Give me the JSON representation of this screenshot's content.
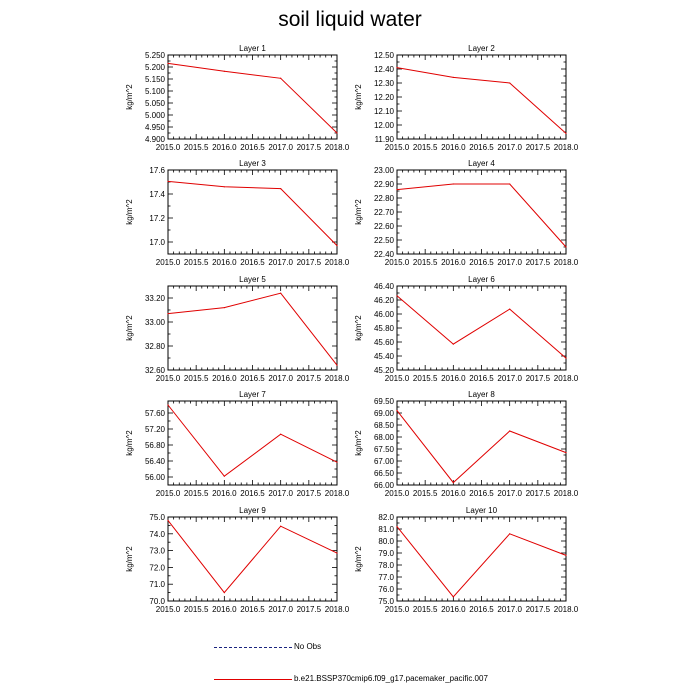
{
  "title": "soil liquid water",
  "colors": {
    "model_line": "#e00000",
    "obs_line": "#1a237e",
    "axis": "#000000"
  },
  "legend": {
    "obs_label": "No Obs",
    "model_label": "b.e21.BSSP370cmip6.f09_g17.pacemaker_pacific.007"
  },
  "chart_data": [
    {
      "type": "line",
      "title": "Layer 1",
      "ylabel": "kg/m^2",
      "x": [
        2015,
        2016,
        2017,
        2018
      ],
      "values": [
        5.215,
        5.182,
        5.153,
        4.925
      ],
      "xticks": [
        "2015.0",
        "2015.5",
        "2016.0",
        "2016.5",
        "2017.0",
        "2017.5",
        "2018.0"
      ],
      "xlim": [
        2015,
        2018
      ],
      "ylim": [
        4.9,
        5.25
      ],
      "yticks": [
        4.9,
        4.95,
        5.0,
        5.05,
        5.1,
        5.15,
        5.2,
        5.25
      ],
      "ytick_labels": [
        "4.900",
        "4.950",
        "5.000",
        "5.050",
        "5.100",
        "5.150",
        "5.200",
        "5.250"
      ]
    },
    {
      "type": "line",
      "title": "Layer 2",
      "ylabel": "kg/m^2",
      "x": [
        2015,
        2016,
        2017,
        2018
      ],
      "values": [
        12.41,
        12.34,
        12.3,
        11.94
      ],
      "xticks": [
        "2015.0",
        "2015.5",
        "2016.0",
        "2016.5",
        "2017.0",
        "2017.5",
        "2018.0"
      ],
      "xlim": [
        2015,
        2018
      ],
      "ylim": [
        11.9,
        12.5
      ],
      "yticks": [
        11.9,
        12.0,
        12.1,
        12.2,
        12.3,
        12.4,
        12.5
      ],
      "ytick_labels": [
        "11.90",
        "12.00",
        "12.10",
        "12.20",
        "12.30",
        "12.40",
        "12.50"
      ]
    },
    {
      "type": "line",
      "title": "Layer 3",
      "ylabel": "kg/m^2",
      "x": [
        2015,
        2016,
        2017,
        2018
      ],
      "values": [
        17.505,
        17.46,
        17.445,
        16.97
      ],
      "xticks": [
        "2015.0",
        "2015.5",
        "2016.0",
        "2016.5",
        "2017.0",
        "2017.5",
        "2018.0"
      ],
      "xlim": [
        2015,
        2018
      ],
      "ylim": [
        16.9,
        17.6
      ],
      "yticks": [
        17.0,
        17.2,
        17.4,
        17.6
      ],
      "ytick_labels": [
        "17.0",
        "17.2",
        "17.4",
        "17.6"
      ]
    },
    {
      "type": "line",
      "title": "Layer 4",
      "ylabel": "kg/m^2",
      "x": [
        2015,
        2016,
        2017,
        2018
      ],
      "values": [
        22.86,
        22.9,
        22.9,
        22.45
      ],
      "xticks": [
        "2015.0",
        "2015.5",
        "2016.0",
        "2016.5",
        "2017.0",
        "2017.5",
        "2018.0"
      ],
      "xlim": [
        2015,
        2018
      ],
      "ylim": [
        22.4,
        23.0
      ],
      "yticks": [
        22.4,
        22.5,
        22.6,
        22.7,
        22.8,
        22.9,
        23.0
      ],
      "ytick_labels": [
        "22.40",
        "22.50",
        "22.60",
        "22.70",
        "22.80",
        "22.90",
        "23.00"
      ]
    },
    {
      "type": "line",
      "title": "Layer 5",
      "ylabel": "kg/m^2",
      "x": [
        2015,
        2016,
        2017,
        2018
      ],
      "values": [
        33.07,
        33.12,
        33.24,
        32.64
      ],
      "xticks": [
        "2015.0",
        "2015.5",
        "2016.0",
        "2016.5",
        "2017.0",
        "2017.5",
        "2018.0"
      ],
      "xlim": [
        2015,
        2018
      ],
      "ylim": [
        32.6,
        33.3
      ],
      "yticks": [
        32.6,
        32.8,
        33.0,
        33.2
      ],
      "ytick_labels": [
        "32.60",
        "32.80",
        "33.00",
        "33.20"
      ]
    },
    {
      "type": "line",
      "title": "Layer 6",
      "ylabel": "kg/m^2",
      "x": [
        2015,
        2016,
        2017,
        2018
      ],
      "values": [
        46.26,
        45.57,
        46.07,
        45.37
      ],
      "xticks": [
        "2015.0",
        "2015.5",
        "2016.0",
        "2016.5",
        "2017.0",
        "2017.5",
        "2018.0"
      ],
      "xlim": [
        2015,
        2018
      ],
      "ylim": [
        45.2,
        46.4
      ],
      "yticks": [
        45.2,
        45.4,
        45.6,
        45.8,
        46.0,
        46.2,
        46.4
      ],
      "ytick_labels": [
        "45.20",
        "45.40",
        "45.60",
        "45.80",
        "46.00",
        "46.20",
        "46.40"
      ]
    },
    {
      "type": "line",
      "title": "Layer 7",
      "ylabel": "kg/m^2",
      "x": [
        2015,
        2016,
        2017,
        2018
      ],
      "values": [
        57.8,
        56.02,
        57.07,
        56.37
      ],
      "xticks": [
        "2015.0",
        "2015.5",
        "2016.0",
        "2016.5",
        "2017.0",
        "2017.5",
        "2018.0"
      ],
      "xlim": [
        2015,
        2018
      ],
      "ylim": [
        55.8,
        57.9
      ],
      "yticks": [
        56.0,
        56.4,
        56.8,
        57.2,
        57.6
      ],
      "ytick_labels": [
        "56.00",
        "56.40",
        "56.80",
        "57.20",
        "57.60"
      ]
    },
    {
      "type": "line",
      "title": "Layer 8",
      "ylabel": "kg/m^2",
      "x": [
        2015,
        2016,
        2017,
        2018
      ],
      "values": [
        69.1,
        66.1,
        68.25,
        67.35
      ],
      "xticks": [
        "2015.0",
        "2015.5",
        "2016.0",
        "2016.5",
        "2017.0",
        "2017.5",
        "2018.0"
      ],
      "xlim": [
        2015,
        2018
      ],
      "ylim": [
        66.0,
        69.5
      ],
      "yticks": [
        66.0,
        66.5,
        67.0,
        67.5,
        68.0,
        68.5,
        69.0,
        69.5
      ],
      "ytick_labels": [
        "66.00",
        "66.50",
        "67.00",
        "67.50",
        "68.00",
        "68.50",
        "69.00",
        "69.50"
      ]
    },
    {
      "type": "line",
      "title": "Layer 9",
      "ylabel": "kg/m^2",
      "x": [
        2015,
        2016,
        2017,
        2018
      ],
      "values": [
        74.8,
        70.5,
        74.45,
        72.85
      ],
      "xticks": [
        "2015.0",
        "2015.5",
        "2016.0",
        "2016.5",
        "2017.0",
        "2017.5",
        "2018.0"
      ],
      "xlim": [
        2015,
        2018
      ],
      "ylim": [
        70.0,
        75.0
      ],
      "yticks": [
        70.0,
        71.0,
        72.0,
        73.0,
        74.0,
        75.0
      ],
      "ytick_labels": [
        "70.0",
        "71.0",
        "72.0",
        "73.0",
        "74.0",
        "75.0"
      ]
    },
    {
      "type": "line",
      "title": "Layer 10",
      "ylabel": "kg/m^2",
      "x": [
        2015,
        2016,
        2017,
        2018
      ],
      "values": [
        81.2,
        75.35,
        80.6,
        78.8
      ],
      "xticks": [
        "2015.0",
        "2015.5",
        "2016.0",
        "2016.5",
        "2017.0",
        "2017.5",
        "2018.0"
      ],
      "xlim": [
        2015,
        2018
      ],
      "ylim": [
        75.0,
        82.0
      ],
      "yticks": [
        75.0,
        76.0,
        77.0,
        78.0,
        79.0,
        80.0,
        81.0,
        82.0
      ],
      "ytick_labels": [
        "75.0",
        "76.0",
        "77.0",
        "78.0",
        "79.0",
        "80.0",
        "81.0",
        "82.0"
      ]
    }
  ]
}
